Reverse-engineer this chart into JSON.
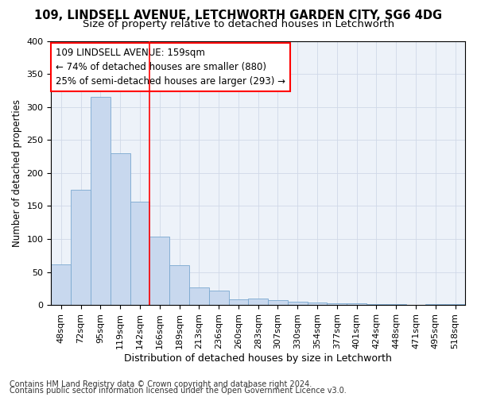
{
  "title1": "109, LINDSELL AVENUE, LETCHWORTH GARDEN CITY, SG6 4DG",
  "title2": "Size of property relative to detached houses in Letchworth",
  "xlabel": "Distribution of detached houses by size in Letchworth",
  "ylabel": "Number of detached properties",
  "categories": [
    "48sqm",
    "72sqm",
    "95sqm",
    "119sqm",
    "142sqm",
    "166sqm",
    "189sqm",
    "213sqm",
    "236sqm",
    "260sqm",
    "283sqm",
    "307sqm",
    "330sqm",
    "354sqm",
    "377sqm",
    "401sqm",
    "424sqm",
    "448sqm",
    "471sqm",
    "495sqm",
    "518sqm"
  ],
  "values": [
    62,
    175,
    315,
    230,
    157,
    103,
    60,
    27,
    22,
    9,
    10,
    7,
    5,
    4,
    3,
    2,
    1,
    1,
    0,
    1,
    1
  ],
  "bar_color": "#c8d8ee",
  "bar_edge_color": "#7aa8d0",
  "red_line_index": 5,
  "annotation_line1": "109 LINDSELL AVENUE: 159sqm",
  "annotation_line2": "← 74% of detached houses are smaller (880)",
  "annotation_line3": "25% of semi-detached houses are larger (293) →",
  "annotation_box_color": "white",
  "annotation_box_edge": "red",
  "ylim": [
    0,
    400
  ],
  "yticks": [
    0,
    50,
    100,
    150,
    200,
    250,
    300,
    350,
    400
  ],
  "grid_color": "#d0d8e8",
  "background_color": "#edf2f9",
  "footer1": "Contains HM Land Registry data © Crown copyright and database right 2024.",
  "footer2": "Contains public sector information licensed under the Open Government Licence v3.0.",
  "title1_fontsize": 10.5,
  "title2_fontsize": 9.5,
  "xlabel_fontsize": 9,
  "ylabel_fontsize": 8.5,
  "tick_fontsize": 8,
  "annotation_fontsize": 8.5,
  "footer_fontsize": 7
}
